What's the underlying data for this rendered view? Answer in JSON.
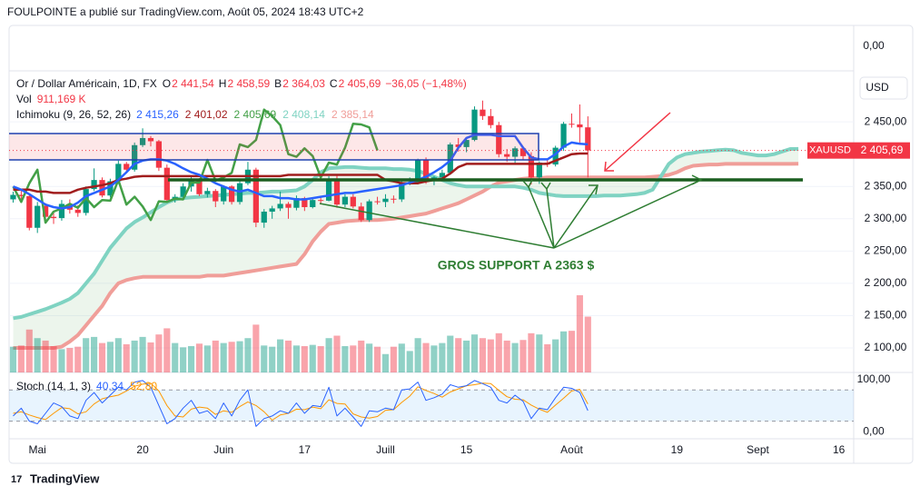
{
  "header": "FOULPOINTE a publié sur TradingView.com, Août 05, 2024 18:43 UTC+2",
  "brand": "TradingView",
  "chart_data": {
    "type": "candlestick",
    "symbol_title": "Or / Dollar Américain, 1D, FX",
    "ohlc_legend": [
      {
        "key": "O",
        "label": "2 441,54"
      },
      {
        "key": "H",
        "label": "2 458,59"
      },
      {
        "key": "B",
        "label": "2 364,03"
      },
      {
        "key": "C",
        "label": "2 405,69"
      }
    ],
    "change_label": "−36,05 (−1,48%)",
    "currency": "USD",
    "top_scale_label": "0,00",
    "price_tag": {
      "symbol": "XAUUSD",
      "label": "2 405,69"
    },
    "annotation": "GROS SUPPORT A 2363 $",
    "up_color": "#089981",
    "down_color": "#f23645",
    "categories": [
      null,
      null,
      null,
      "Mai",
      null,
      null,
      null,
      null,
      null,
      null,
      null,
      null,
      null,
      null,
      null,
      null,
      "20",
      null,
      null,
      null,
      null,
      null,
      null,
      null,
      null,
      null,
      "Juin",
      null,
      null,
      null,
      null,
      null,
      null,
      null,
      null,
      null,
      "17",
      null,
      null,
      null,
      null,
      null,
      null,
      null,
      null,
      null,
      "Juill",
      null,
      null,
      null,
      null,
      null,
      null,
      null,
      null,
      null,
      "15",
      null,
      null,
      null,
      null,
      null,
      null,
      null,
      null,
      null,
      null,
      null,
      null,
      "Août",
      null,
      null,
      null,
      null,
      null,
      null,
      null,
      null,
      null,
      null,
      null,
      null,
      "19",
      null,
      null,
      null,
      null,
      null,
      null,
      null,
      null,
      null,
      "Sept",
      null,
      null,
      null,
      null,
      null,
      null,
      null,
      null,
      null,
      "16",
      null
    ],
    "opens": [
      2330,
      2337,
      2335,
      2286,
      2320,
      2303,
      2301,
      2323,
      2314,
      2309,
      2346,
      2360,
      2336,
      2358,
      2385,
      2376,
      2414,
      2425,
      2420,
      2379,
      2329,
      2334,
      2350,
      2361,
      2338,
      2343,
      2327,
      2350,
      2326,
      2355,
      2376,
      2294,
      2311,
      2316,
      2323,
      2317,
      2332,
      2318,
      2329,
      2328,
      2360,
      2322,
      2334,
      2319,
      2298,
      2327,
      2326,
      2331,
      2330,
      2356,
      2356,
      2391,
      2359,
      2364,
      2371,
      2415,
      2411,
      2422,
      2469,
      2459,
      2445,
      2400,
      2396,
      2409,
      2397,
      2364,
      2387,
      2384,
      2410,
      2447,
      2446,
      2441.54
    ],
    "highs": [
      2342,
      2345,
      2337,
      2326,
      2324,
      2311,
      2329,
      2330,
      2321,
      2350,
      2378,
      2364,
      2362,
      2390,
      2388,
      2418,
      2440,
      2428,
      2422,
      2384,
      2338,
      2355,
      2365,
      2363,
      2348,
      2346,
      2352,
      2352,
      2358,
      2388,
      2379,
      2315,
      2320,
      2342,
      2326,
      2336,
      2334,
      2332,
      2334,
      2366,
      2368,
      2338,
      2338,
      2325,
      2330,
      2334,
      2338,
      2336,
      2359,
      2364,
      2393,
      2395,
      2366,
      2376,
      2418,
      2425,
      2425,
      2474,
      2483,
      2470,
      2450,
      2408,
      2412,
      2412,
      2403,
      2389,
      2393,
      2413,
      2450,
      2463,
      2477,
      2458.59
    ],
    "lows": [
      2325,
      2328,
      2282,
      2278,
      2298,
      2292,
      2297,
      2308,
      2303,
      2305,
      2343,
      2333,
      2333,
      2354,
      2370,
      2373,
      2411,
      2412,
      2374,
      2325,
      2325,
      2330,
      2342,
      2335,
      2333,
      2318,
      2322,
      2322,
      2322,
      2352,
      2287,
      2286,
      2300,
      2312,
      2300,
      2313,
      2312,
      2316,
      2322,
      2327,
      2317,
      2318,
      2316,
      2295,
      2295,
      2322,
      2318,
      2324,
      2326,
      2352,
      2353,
      2354,
      2352,
      2360,
      2368,
      2404,
      2403,
      2420,
      2453,
      2440,
      2395,
      2388,
      2385,
      2391,
      2353,
      2354,
      2380,
      2381,
      2405,
      2441,
      2418,
      2364.03
    ],
    "closes": [
      2337,
      2335,
      2286,
      2320,
      2303,
      2301,
      2323,
      2314,
      2309,
      2346,
      2360,
      2336,
      2358,
      2385,
      2376,
      2414,
      2425,
      2420,
      2379,
      2329,
      2334,
      2350,
      2361,
      2338,
      2343,
      2327,
      2350,
      2326,
      2355,
      2376,
      2294,
      2311,
      2316,
      2323,
      2317,
      2332,
      2318,
      2329,
      2328,
      2360,
      2322,
      2334,
      2319,
      2298,
      2327,
      2326,
      2331,
      2330,
      2356,
      2356,
      2391,
      2359,
      2364,
      2371,
      2415,
      2411,
      2422,
      2469,
      2459,
      2445,
      2400,
      2396,
      2409,
      2397,
      2364,
      2387,
      2384,
      2410,
      2447,
      2446,
      2441.54,
      2405.69
    ],
    "ylim": [
      2062,
      2529
    ],
    "yticks": [
      {
        "value": 2100,
        "label": "2 100,00"
      },
      {
        "value": 2150,
        "label": "2 150,00"
      },
      {
        "value": 2200,
        "label": "2 200,00"
      },
      {
        "value": 2250,
        "label": "2 250,00"
      },
      {
        "value": 2300,
        "label": "2 300,00"
      },
      {
        "value": 2350,
        "label": "2 350,00"
      },
      {
        "value": 2450,
        "label": "2 450,00"
      }
    ],
    "grid": true,
    "volume": {
      "label": "Vol",
      "value_label": "911,169 K",
      "values": [
        420,
        440,
        700,
        560,
        520,
        430,
        380,
        400,
        420,
        560,
        580,
        480,
        500,
        560,
        460,
        520,
        580,
        490,
        620,
        720,
        480,
        410,
        430,
        470,
        440,
        520,
        480,
        500,
        510,
        560,
        780,
        440,
        420,
        540,
        520,
        440,
        430,
        450,
        430,
        560,
        600,
        430,
        440,
        520,
        470,
        420,
        300,
        420,
        470,
        350,
        560,
        480,
        440,
        480,
        600,
        560,
        520,
        620,
        560,
        540,
        640,
        520,
        480,
        530,
        640,
        620,
        460,
        540,
        670,
        680,
        1260,
        911.169
      ]
    },
    "ichimoku": {
      "label": "Ichimoku (9, 26, 52, 26)",
      "cloud_color": "#43a047",
      "series": [
        {
          "color": "#2962ff",
          "width": 2.5,
          "value_label": "2 415,26",
          "values": [
            2350,
            2345,
            2338,
            2330,
            2322,
            2318,
            2316,
            2318,
            2325,
            2335,
            2340,
            2345,
            2350,
            2360,
            2372,
            2385,
            2390,
            2392,
            2392,
            2390,
            2385,
            2378,
            2372,
            2368,
            2362,
            2355,
            2350,
            2345,
            2342,
            2345,
            2340,
            2335,
            2335,
            2332,
            2332,
            2330,
            2330,
            2332,
            2334,
            2336,
            2338,
            2340,
            2340,
            2342,
            2344,
            2346,
            2348,
            2350,
            2352,
            2356,
            2360,
            2365,
            2372,
            2380,
            2390,
            2410,
            2425,
            2430,
            2430,
            2430,
            2428,
            2428,
            2428,
            2410,
            2395,
            2392,
            2392,
            2400,
            2412,
            2418,
            2416,
            2415.26
          ]
        },
        {
          "color": "#a11d1d",
          "width": 2.5,
          "value_label": "2 401,02",
          "values": [
            2345,
            2345,
            2345,
            2342,
            2342,
            2340,
            2340,
            2340,
            2345,
            2348,
            2350,
            2352,
            2355,
            2360,
            2362,
            2365,
            2366,
            2366,
            2366,
            2366,
            2366,
            2366,
            2366,
            2366,
            2366,
            2366,
            2366,
            2366,
            2366,
            2366,
            2366,
            2366,
            2366,
            2366,
            2368,
            2368,
            2368,
            2368,
            2368,
            2368,
            2368,
            2368,
            2368,
            2368,
            2368,
            2368,
            2360,
            2358,
            2355,
            2355,
            2355,
            2358,
            2360,
            2362,
            2370,
            2380,
            2385,
            2385,
            2385,
            2385,
            2385,
            2385,
            2385,
            2385,
            2385,
            2385,
            2385,
            2390,
            2395,
            2400,
            2401,
            2401.02
          ]
        },
        {
          "color": "#43a047",
          "width": 2.5,
          "value_label": "2 405,69",
          "values": [
            2350,
            2326,
            2355,
            2376,
            2294,
            2311,
            2316,
            2323,
            2317,
            2332,
            2318,
            2329,
            2328,
            2360,
            2322,
            2334,
            2319,
            2298,
            2327,
            2326,
            2331,
            2330,
            2356,
            2356,
            2391,
            2359,
            2364,
            2371,
            2415,
            2411,
            2422,
            2469,
            2459,
            2445,
            2400,
            2396,
            2409,
            2397,
            2364,
            2387,
            2384,
            2410,
            2447,
            2446,
            2441.54,
            2405.69
          ]
        },
        {
          "color": "#7fd3c2",
          "width": 4,
          "value_label": "2 408,14",
          "values": [
            2146,
            2148,
            2152,
            2156,
            2160,
            2165,
            2170,
            2176,
            2185,
            2200,
            2215,
            2235,
            2255,
            2270,
            2285,
            2295,
            2302,
            2310,
            2318,
            2325,
            2330,
            2332,
            2333,
            2334,
            2335,
            2336,
            2337,
            2338,
            2339,
            2340,
            2340,
            2341,
            2342,
            2342,
            2343,
            2344,
            2350,
            2360,
            2372,
            2378,
            2379,
            2380,
            2380,
            2379,
            2378,
            2378,
            2378,
            2377,
            2377,
            2376,
            2374,
            2370,
            2365,
            2360,
            2355,
            2352,
            2350,
            2350,
            2350,
            2350,
            2350,
            2350,
            2350,
            2348,
            2345,
            2340,
            2338,
            2336,
            2335,
            2335,
            2335,
            2335,
            2335,
            2336,
            2336,
            2336,
            2337,
            2338,
            2340,
            2345,
            2365,
            2385,
            2395,
            2400,
            2402,
            2404,
            2405,
            2406,
            2407,
            2406,
            2402,
            2400,
            2398,
            2398,
            2400,
            2404,
            2408,
            2408.14
          ]
        },
        {
          "color": "#f09e99",
          "width": 4,
          "value_label": "2 385,14",
          "values": [
            2100,
            2100,
            2100,
            2100,
            2100,
            2100,
            2102,
            2110,
            2120,
            2135,
            2150,
            2165,
            2185,
            2200,
            2205,
            2208,
            2210,
            2210,
            2210,
            2210,
            2210,
            2210,
            2210,
            2210,
            2212,
            2212,
            2212,
            2214,
            2216,
            2218,
            2220,
            2222,
            2224,
            2226,
            2228,
            2230,
            2245,
            2265,
            2280,
            2292,
            2294,
            2296,
            2297,
            2298,
            2298,
            2298,
            2299,
            2300,
            2302,
            2304,
            2306,
            2308,
            2312,
            2316,
            2320,
            2324,
            2330,
            2336,
            2342,
            2350,
            2356,
            2358,
            2360,
            2362,
            2363,
            2363,
            2364,
            2364,
            2364,
            2364,
            2364,
            2364,
            2364,
            2364,
            2364,
            2364,
            2364,
            2364,
            2364,
            2365,
            2366,
            2368,
            2372,
            2378,
            2382,
            2383,
            2384,
            2384,
            2385,
            2385,
            2385,
            2385,
            2385,
            2385,
            2385,
            2385,
            2385,
            2385.14
          ]
        }
      ]
    },
    "stoch": {
      "label": "Stoch (14, 1, 3)",
      "ylim": [
        -12,
        110
      ],
      "yticks": [
        {
          "value": 0,
          "label": "0,00"
        },
        {
          "value": 100,
          "label": "100,00"
        }
      ],
      "bands": [
        20,
        80
      ],
      "band_color": "#2196f3",
      "series": [
        {
          "color": "#2962ff",
          "value_label": "40,34",
          "values": [
            30,
            45,
            20,
            15,
            35,
            55,
            48,
            30,
            25,
            60,
            75,
            55,
            70,
            85,
            80,
            95,
            98,
            85,
            50,
            15,
            25,
            45,
            60,
            35,
            40,
            25,
            55,
            30,
            60,
            80,
            10,
            25,
            30,
            40,
            35,
            55,
            35,
            50,
            48,
            85,
            30,
            45,
            28,
            10,
            40,
            38,
            45,
            42,
            80,
            82,
            95,
            60,
            65,
            72,
            90,
            85,
            88,
            98,
            92,
            85,
            60,
            55,
            70,
            58,
            25,
            45,
            42,
            65,
            85,
            83,
            75,
            40.34
          ]
        },
        {
          "color": "#ff9800",
          "value_label": "52,80",
          "values": [
            35,
            38,
            32,
            27,
            23,
            35,
            46,
            44,
            34,
            38,
            53,
            63,
            67,
            70,
            78,
            87,
            91,
            93,
            78,
            50,
            30,
            28,
            43,
            47,
            45,
            33,
            40,
            37,
            48,
            57,
            50,
            38,
            22,
            32,
            35,
            43,
            42,
            47,
            44,
            61,
            54,
            53,
            34,
            28,
            26,
            29,
            41,
            42,
            56,
            68,
            86,
            79,
            73,
            66,
            76,
            82,
            88,
            90,
            93,
            92,
            79,
            67,
            62,
            61,
            51,
            43,
            37,
            51,
            64,
            78,
            81,
            52.8
          ]
        }
      ]
    }
  }
}
